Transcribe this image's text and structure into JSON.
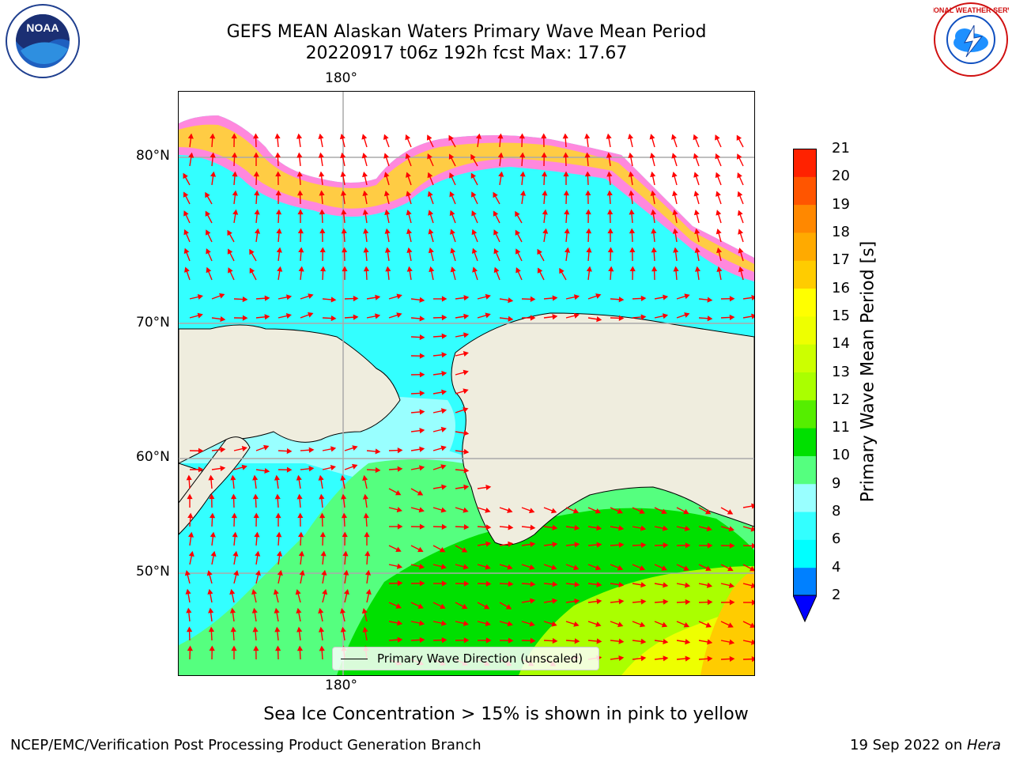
{
  "header": {
    "title_line1": "GEFS MEAN Alaskan Waters Primary Wave Mean Period",
    "title_line2": "20220917 t06z 192h fcst   Max: 17.67"
  },
  "logos": {
    "left": {
      "icon": "noaa-logo-icon",
      "text": "NOAA"
    },
    "right": {
      "icon": "nws-logo-icon",
      "text": "NATIONAL WEATHER SERVICE"
    }
  },
  "map": {
    "lon_label_top": "180°",
    "lon_label_bottom": "180°",
    "lat_labels": [
      "80°N",
      "70°N",
      "60°N",
      "50°N"
    ],
    "legend_label": "Primary Wave Direction (unscaled)",
    "colors": {
      "land": "#efedde",
      "ocean_low": "#00ffff",
      "ocean_mid": "#99ffff",
      "ocean_green": "#66ff66",
      "ice": "#ff66ff",
      "arrow": "#ff0000"
    }
  },
  "colorbar": {
    "title": "Primary Wave Mean Period [s]",
    "levels": [
      "2",
      "4",
      "6",
      "8",
      "9",
      "10",
      "11",
      "12",
      "13",
      "14",
      "15",
      "16",
      "17",
      "18",
      "19",
      "20",
      "21"
    ],
    "colors": [
      "#0080ff",
      "#00ffff",
      "#33ffff",
      "#99ffff",
      "#55ff7f",
      "#00e000",
      "#55ee00",
      "#aaff00",
      "#ccff00",
      "#eeff00",
      "#ffff00",
      "#ffcc00",
      "#ffaa00",
      "#ff8800",
      "#ff5500",
      "#ff2200"
    ],
    "extend_color": "#0000ff"
  },
  "footer": {
    "ice_note": "Sea Ice Concentration > 15% is shown in pink to yellow",
    "credit_left": "NCEP/EMC/Verification Post Processing Product Generation Branch",
    "credit_right_date": "19 Sep 2022 on ",
    "credit_right_host": "Hera"
  }
}
